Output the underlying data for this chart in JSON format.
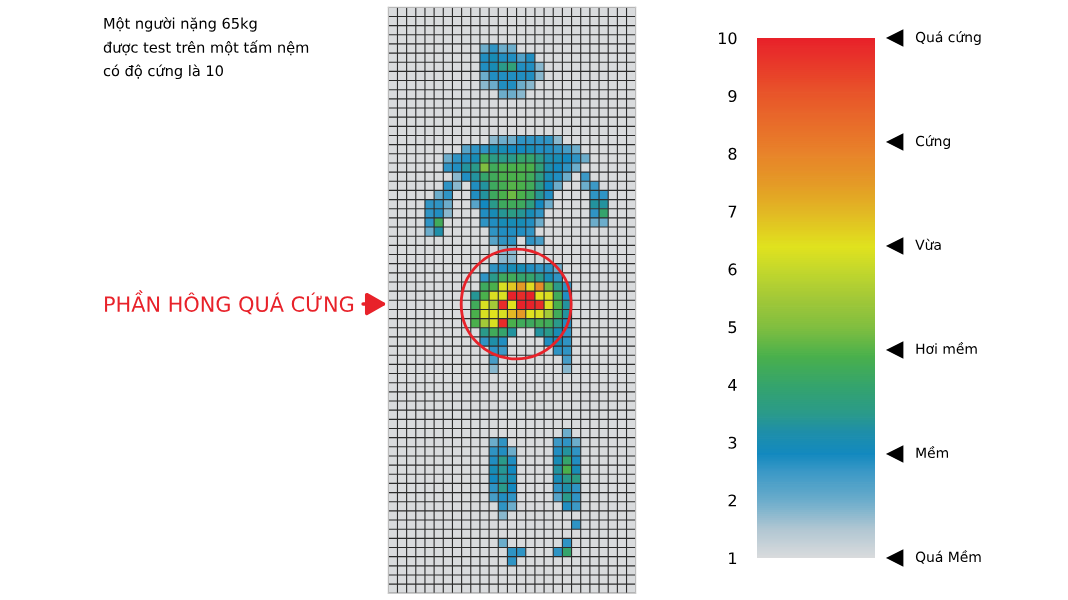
{
  "chart_data": {
    "type": "heatmap",
    "title": "Một người nặng 65kg\nđược test trên một tấm nệm\ncó độ cứng là 10",
    "categories": [
      null,
      null,
      null,
      null,
      null,
      null,
      null,
      null,
      null,
      null,
      null,
      null,
      null,
      null,
      null,
      null,
      null,
      null,
      null,
      null,
      null,
      null,
      null,
      null,
      null,
      null,
      null
    ],
    "y_categories": [
      null,
      null,
      null,
      null,
      null,
      null,
      null,
      null,
      null,
      null,
      null,
      null,
      null,
      null,
      null,
      null,
      null,
      null,
      null,
      null,
      null,
      null,
      null,
      null,
      null,
      null,
      null,
      null,
      null,
      null,
      null,
      null,
      null,
      null,
      null,
      null,
      null,
      null,
      null,
      null,
      null,
      null,
      null,
      null,
      null,
      null,
      null,
      null,
      null,
      null,
      null,
      null,
      null,
      null,
      null,
      null,
      null,
      null,
      null,
      null,
      null,
      null,
      null,
      null
    ],
    "cells": [
      [
        1,
        1,
        1,
        1,
        1,
        1,
        1,
        1,
        1,
        1,
        1,
        1,
        1,
        1,
        1,
        1,
        1,
        1,
        1,
        1,
        1,
        1,
        1,
        1,
        1,
        1,
        1
      ],
      [
        1,
        1,
        1,
        1,
        1,
        1,
        1,
        1,
        1,
        1,
        1,
        1,
        1,
        1,
        1,
        1,
        1,
        1,
        1,
        1,
        1,
        1,
        1,
        1,
        1,
        1,
        1
      ],
      [
        1,
        1,
        1,
        1,
        1,
        1,
        1,
        1,
        1,
        1,
        1,
        1,
        1,
        1,
        1,
        1,
        1,
        1,
        1,
        1,
        1,
        1,
        1,
        1,
        1,
        1,
        1
      ],
      [
        1,
        1,
        1,
        1,
        1,
        1,
        1,
        1,
        1,
        1,
        1,
        1,
        1,
        1,
        1,
        1,
        1,
        1,
        1,
        1,
        1,
        1,
        1,
        1,
        1,
        1,
        1
      ],
      [
        1,
        1,
        1,
        1,
        1,
        1,
        1,
        1,
        1,
        1,
        2,
        2.6,
        2,
        2,
        1,
        1,
        1,
        1,
        1,
        1,
        1,
        1,
        1,
        1,
        1,
        1,
        1
      ],
      [
        1,
        1,
        1,
        1,
        1,
        1,
        1,
        1,
        1,
        1,
        2.7,
        3,
        2.7,
        2.7,
        2.3,
        2.7,
        1,
        1,
        1,
        1,
        1,
        1,
        1,
        1,
        1,
        1,
        1
      ],
      [
        1,
        1,
        1,
        1,
        1,
        1,
        1,
        1,
        1,
        1,
        2.7,
        3,
        3.5,
        3.8,
        2.7,
        2.7,
        1.8,
        1,
        1,
        1,
        1,
        1,
        1,
        1,
        1,
        1,
        1
      ],
      [
        1,
        1,
        1,
        1,
        1,
        1,
        1,
        1,
        1,
        1,
        2,
        2.7,
        2.7,
        2.7,
        2.7,
        2.7,
        1.8,
        1,
        1,
        1,
        1,
        1,
        1,
        1,
        1,
        1,
        1
      ],
      [
        1,
        1,
        1,
        1,
        1,
        1,
        1,
        1,
        1,
        1,
        1.8,
        2,
        2.7,
        2.7,
        2,
        1.8,
        1,
        1,
        1,
        1,
        1,
        1,
        1,
        1,
        1,
        1,
        1
      ],
      [
        1,
        1,
        1,
        1,
        1,
        1,
        1,
        1,
        1,
        1,
        1,
        1,
        2,
        2,
        1.8,
        1,
        1,
        1,
        1,
        1,
        1,
        1,
        1,
        1,
        1,
        1,
        1
      ],
      [
        1,
        1,
        1,
        1,
        1,
        1,
        1,
        1,
        1,
        1,
        1,
        1,
        1,
        1,
        1,
        1,
        1,
        1,
        1,
        1,
        1,
        1,
        1,
        1,
        1,
        1,
        1
      ],
      [
        1,
        1,
        1,
        1,
        1,
        1,
        1,
        1,
        1,
        1,
        1,
        1,
        1,
        1,
        1,
        1,
        1,
        1,
        1,
        1,
        1,
        1,
        1,
        1,
        1,
        1,
        1
      ],
      [
        1,
        1,
        1,
        1,
        1,
        1,
        1,
        1,
        1,
        1,
        1,
        1,
        1,
        1,
        1,
        1,
        1,
        1,
        1,
        1,
        1,
        1,
        1,
        1,
        1,
        1,
        1
      ],
      [
        1,
        1,
        1,
        1,
        1,
        1,
        1,
        1,
        1,
        1,
        1,
        1,
        1,
        1,
        1,
        1,
        1,
        1,
        1,
        1,
        1,
        1,
        1,
        1,
        1,
        1,
        1
      ],
      [
        1,
        1,
        1,
        1,
        1,
        1,
        1,
        1,
        1,
        1,
        1,
        1.8,
        2,
        2,
        2.6,
        2.6,
        2.6,
        2.6,
        1.8,
        1,
        1,
        1,
        1,
        1,
        1,
        1,
        1
      ],
      [
        1,
        1,
        1,
        1,
        1,
        1,
        1,
        1,
        2.2,
        2.6,
        2.6,
        3,
        3,
        2.8,
        2.8,
        3,
        2.7,
        2.7,
        2.6,
        2.4,
        2,
        1,
        1,
        1,
        1,
        1,
        1
      ],
      [
        1,
        1,
        1,
        1,
        1,
        1,
        2,
        2.6,
        2.7,
        3,
        4.2,
        3.6,
        3.5,
        3.5,
        4,
        4,
        3.5,
        3.1,
        3,
        2.8,
        2.6,
        2,
        1,
        1,
        1,
        1,
        1
      ],
      [
        1,
        1,
        1,
        1,
        1,
        1,
        2.6,
        2.7,
        3.3,
        3.5,
        5,
        4.3,
        4.5,
        4.5,
        4.5,
        4.5,
        3.8,
        3.1,
        2.8,
        2.6,
        2,
        1,
        1,
        1,
        1,
        1,
        1
      ],
      [
        1,
        1,
        1,
        1,
        1,
        1,
        1,
        1.8,
        2.7,
        3.3,
        4,
        4.3,
        4.5,
        4.5,
        4.5,
        4.3,
        3.6,
        3,
        2.7,
        2,
        1,
        2.5,
        1,
        1,
        1,
        1,
        1
      ],
      [
        1,
        1,
        1,
        1,
        1,
        1,
        2.6,
        1.8,
        1,
        2.7,
        3.3,
        4.2,
        4.4,
        4.6,
        4.5,
        4.3,
        3.5,
        2.8,
        2,
        1,
        1,
        2,
        2.5,
        1,
        1,
        1,
        1
      ],
      [
        1,
        1,
        1,
        1,
        1,
        2,
        2.6,
        1,
        1,
        2.7,
        3.3,
        4.2,
        4.5,
        4.8,
        4.5,
        4.2,
        3.4,
        2.7,
        1,
        1,
        1,
        1,
        2.6,
        2.6,
        1,
        1,
        1
      ],
      [
        1,
        1,
        1,
        1,
        2.6,
        2.6,
        2,
        1,
        1,
        2.2,
        2.8,
        3.5,
        4.2,
        4.3,
        4.2,
        3.7,
        2.8,
        2,
        1,
        1,
        1,
        1,
        3.3,
        3.3,
        1,
        1,
        1
      ],
      [
        1,
        1,
        1,
        1,
        2.6,
        2.7,
        1.8,
        1,
        1,
        1,
        2.7,
        3,
        3.4,
        3.6,
        3.4,
        3,
        2.6,
        1,
        1,
        1,
        1,
        1,
        2.6,
        4,
        1,
        1,
        1
      ],
      [
        1,
        1,
        1,
        1,
        2.6,
        4.3,
        1,
        1,
        1,
        1,
        2.6,
        2.7,
        3,
        3,
        3,
        2.7,
        2,
        1,
        1,
        1,
        1,
        1,
        2,
        2,
        1,
        1,
        1
      ],
      [
        1,
        1,
        1,
        1,
        2,
        3.2,
        1,
        1,
        1,
        1,
        1,
        2.6,
        2.7,
        2.7,
        2.7,
        2.6,
        1,
        1,
        1,
        1,
        1,
        1,
        1,
        1,
        1,
        1,
        1
      ],
      [
        1,
        1,
        1,
        1,
        1,
        1,
        1,
        1,
        1,
        1,
        1,
        2.2,
        2.6,
        2.6,
        1,
        2.6,
        2.4,
        1,
        1,
        1,
        1,
        1,
        1,
        1,
        1,
        1,
        1
      ],
      [
        1,
        1,
        1,
        1,
        1,
        1,
        1,
        1,
        1,
        1,
        1,
        1,
        1.8,
        1.8,
        1,
        1,
        1,
        1,
        1,
        1,
        1,
        1,
        1,
        1,
        1,
        1,
        1
      ],
      [
        1,
        1,
        1,
        1,
        1,
        1,
        1,
        1,
        1,
        1,
        1,
        1,
        1.8,
        1.8,
        1,
        1,
        1,
        1,
        1,
        1,
        1,
        1,
        1,
        1,
        1,
        1,
        1
      ],
      [
        1,
        1,
        1,
        1,
        1,
        1,
        1,
        1,
        1,
        1,
        1,
        2.6,
        2.7,
        3,
        3,
        2.7,
        2.6,
        2.6,
        2,
        1,
        1,
        1,
        1,
        1,
        1,
        1,
        1
      ],
      [
        1,
        1,
        1,
        1,
        1,
        1,
        1,
        1,
        1,
        1,
        2.6,
        3.5,
        4.2,
        4.3,
        4,
        4,
        3.5,
        3,
        2.6,
        1,
        1,
        1,
        1,
        1,
        1,
        1,
        1
      ],
      [
        1,
        1,
        1,
        1,
        1,
        1,
        1,
        1,
        1,
        1,
        4.2,
        4.5,
        6.3,
        6.8,
        7.5,
        6.5,
        7.8,
        4.8,
        3.5,
        2.6,
        1,
        1,
        1,
        1,
        1,
        1,
        1
      ],
      [
        1,
        1,
        1,
        1,
        1,
        1,
        1,
        1,
        1,
        3.4,
        4.5,
        6.3,
        6.3,
        10,
        9.8,
        10,
        6.4,
        6.3,
        4.3,
        2.7,
        1,
        1,
        1,
        1,
        1,
        1,
        1
      ],
      [
        1,
        1,
        1,
        1,
        1,
        1,
        1,
        1,
        1,
        4.3,
        6.3,
        5.5,
        9.8,
        6.4,
        10,
        10,
        9.8,
        6.3,
        4.5,
        3.3,
        1,
        1,
        1,
        1,
        1,
        1,
        1
      ],
      [
        1,
        1,
        1,
        1,
        1,
        1,
        1,
        1,
        1,
        4.5,
        6.3,
        6.4,
        6.3,
        7,
        7.5,
        6.4,
        6.3,
        5.5,
        4.3,
        3.3,
        1,
        1,
        1,
        1,
        1,
        1,
        1
      ],
      [
        1,
        1,
        1,
        1,
        1,
        1,
        1,
        1,
        1,
        4.5,
        5.5,
        6.3,
        9.8,
        4.5,
        4.3,
        4.2,
        4.4,
        4.3,
        3.5,
        2.7,
        1,
        1,
        1,
        1,
        1,
        1,
        1
      ],
      [
        1,
        1,
        1,
        1,
        1,
        1,
        1,
        1,
        1,
        1,
        3.5,
        4.3,
        4,
        3.3,
        1,
        1,
        3.3,
        3.5,
        3,
        2.6,
        1,
        1,
        1,
        1,
        1,
        1,
        1
      ],
      [
        1,
        1,
        1,
        1,
        1,
        1,
        1,
        1,
        1,
        1,
        2.6,
        3.2,
        2.7,
        1,
        1,
        1,
        1,
        2.7,
        3,
        2.6,
        1,
        1,
        1,
        1,
        1,
        1,
        1
      ],
      [
        1,
        1,
        1,
        1,
        1,
        1,
        1,
        1,
        1,
        1,
        1,
        2.6,
        2.5,
        1,
        1,
        1,
        1,
        1,
        2.6,
        2.6,
        1,
        1,
        1,
        1,
        1,
        1,
        1
      ],
      [
        1,
        1,
        1,
        1,
        1,
        1,
        1,
        1,
        1,
        1,
        1,
        2.4,
        1,
        1,
        1,
        1,
        1,
        1,
        1,
        2.4,
        1,
        1,
        1,
        1,
        1,
        1,
        1
      ],
      [
        1,
        1,
        1,
        1,
        1,
        1,
        1,
        1,
        1,
        1,
        1,
        1.8,
        1,
        1,
        1,
        1,
        1,
        1,
        1,
        1.8,
        1,
        1,
        1,
        1,
        1,
        1,
        1
      ],
      [
        1,
        1,
        1,
        1,
        1,
        1,
        1,
        1,
        1,
        1,
        1,
        1,
        1,
        1,
        1,
        1,
        1,
        1,
        1,
        1,
        1,
        1,
        1,
        1,
        1,
        1,
        1
      ],
      [
        1,
        1,
        1,
        1,
        1,
        1,
        1,
        1,
        1,
        1,
        1,
        1,
        1,
        1,
        1,
        1,
        1,
        1,
        1,
        1,
        1,
        1,
        1,
        1,
        1,
        1,
        1
      ],
      [
        1,
        1,
        1,
        1,
        1,
        1,
        1,
        1,
        1,
        1,
        1,
        1,
        1,
        1,
        1,
        1,
        1,
        1,
        1,
        1,
        1,
        1,
        1,
        1,
        1,
        1,
        1
      ],
      [
        1,
        1,
        1,
        1,
        1,
        1,
        1,
        1,
        1,
        1,
        1,
        1,
        1,
        1,
        1,
        1,
        1,
        1,
        1,
        1,
        1,
        1,
        1,
        1,
        1,
        1,
        1
      ],
      [
        1,
        1,
        1,
        1,
        1,
        1,
        1,
        1,
        1,
        1,
        1,
        1,
        1,
        1,
        1,
        1,
        1,
        1,
        1,
        1,
        1,
        1,
        1,
        1,
        1,
        1,
        1
      ],
      [
        1,
        1,
        1,
        1,
        1,
        1,
        1,
        1,
        1,
        1,
        1,
        1,
        1,
        1,
        1,
        1,
        1,
        1,
        1,
        1,
        1,
        1,
        1,
        1,
        1,
        1,
        1
      ],
      [
        1,
        1,
        1,
        1,
        1,
        1,
        1,
        1,
        1,
        1,
        1,
        1,
        1,
        1,
        1,
        1,
        1,
        1,
        1,
        2,
        1,
        1,
        1,
        1,
        1,
        1,
        1
      ],
      [
        1,
        1,
        1,
        1,
        1,
        1,
        1,
        1,
        1,
        1,
        1,
        2,
        2.6,
        1,
        1,
        1,
        1,
        1,
        2.5,
        2.6,
        2,
        1,
        1,
        1,
        1,
        1,
        1
      ],
      [
        1,
        1,
        1,
        1,
        1,
        1,
        1,
        1,
        1,
        1,
        1,
        2.6,
        2.7,
        2,
        1,
        1,
        1,
        1,
        2.7,
        3.3,
        2.6,
        1,
        1,
        1,
        1,
        1,
        1
      ],
      [
        1,
        1,
        1,
        1,
        1,
        1,
        1,
        1,
        1,
        1,
        1,
        2.7,
        3.5,
        2.7,
        1,
        1,
        1,
        1,
        3,
        4,
        2.7,
        1,
        1,
        1,
        1,
        1,
        1
      ],
      [
        1,
        1,
        1,
        1,
        1,
        1,
        1,
        1,
        1,
        1,
        1,
        3,
        3.4,
        2.8,
        1,
        1,
        1,
        1,
        3.3,
        4.5,
        3,
        1,
        1,
        1,
        1,
        1,
        1
      ],
      [
        1,
        1,
        1,
        1,
        1,
        1,
        1,
        1,
        1,
        1,
        1,
        2.8,
        3.3,
        3,
        1,
        1,
        1,
        1,
        3,
        3.5,
        3.6,
        1,
        1,
        1,
        1,
        1,
        1
      ],
      [
        1,
        1,
        1,
        1,
        1,
        1,
        1,
        1,
        1,
        1,
        1,
        2.6,
        3.5,
        2.8,
        1,
        1,
        1,
        1,
        2.6,
        3.2,
        2.6,
        1,
        1,
        1,
        1,
        1,
        1
      ],
      [
        1,
        1,
        1,
        1,
        1,
        1,
        1,
        1,
        1,
        1,
        1,
        2.4,
        2.7,
        2.6,
        1,
        1,
        1,
        1,
        2.2,
        3.5,
        2.6,
        1,
        1,
        1,
        1,
        1,
        1
      ],
      [
        1,
        1,
        1,
        1,
        1,
        1,
        1,
        1,
        1,
        1,
        1,
        1,
        2.6,
        2,
        1,
        1,
        1,
        1,
        1,
        2.7,
        2.5,
        1,
        1,
        1,
        1,
        1,
        1
      ],
      [
        1,
        1,
        1,
        1,
        1,
        1,
        1,
        1,
        1,
        1,
        1,
        1,
        1.8,
        1,
        1,
        1,
        1,
        1,
        1,
        1,
        1,
        1,
        1,
        1,
        1,
        1,
        1
      ],
      [
        1,
        1,
        1,
        1,
        1,
        1,
        1,
        1,
        1,
        1,
        1,
        1,
        1,
        1,
        1,
        1,
        1,
        1,
        1,
        1,
        2.6,
        1,
        1,
        1,
        1,
        1,
        1
      ],
      [
        1,
        1,
        1,
        1,
        1,
        1,
        1,
        1,
        1,
        1,
        1,
        1,
        1,
        1,
        1,
        1,
        1,
        1,
        1,
        1,
        1,
        1,
        1,
        1,
        1,
        1,
        1
      ],
      [
        1,
        1,
        1,
        1,
        1,
        1,
        1,
        1,
        1,
        1,
        1,
        1,
        2,
        1,
        1,
        1,
        1,
        1,
        1,
        2.6,
        1,
        1,
        1,
        1,
        1,
        1,
        1
      ],
      [
        1,
        1,
        1,
        1,
        1,
        1,
        1,
        1,
        1,
        1,
        1,
        1,
        1,
        2.6,
        2.6,
        1,
        1,
        1,
        2.6,
        4,
        1,
        1,
        1,
        1,
        1,
        1,
        1
      ],
      [
        1,
        1,
        1,
        1,
        1,
        1,
        1,
        1,
        1,
        1,
        1,
        1,
        1,
        2.6,
        1,
        1,
        1,
        1,
        1,
        1,
        1,
        1,
        1,
        1,
        1,
        1,
        1
      ],
      [
        1,
        1,
        1,
        1,
        1,
        1,
        1,
        1,
        1,
        1,
        1,
        1,
        1,
        1,
        1,
        1,
        1,
        1,
        1,
        1,
        1,
        1,
        1,
        1,
        1,
        1,
        1
      ],
      [
        1,
        1,
        1,
        1,
        1,
        1,
        1,
        1,
        1,
        1,
        1,
        1,
        1,
        1,
        1,
        1,
        1,
        1,
        1,
        1,
        1,
        1,
        1,
        1,
        1,
        1,
        1
      ],
      [
        1,
        1,
        1,
        1,
        1,
        1,
        1,
        1,
        1,
        1,
        1,
        1,
        1,
        1,
        1,
        1,
        1,
        1,
        1,
        1,
        1,
        1,
        1,
        1,
        1,
        1,
        1
      ]
    ],
    "clim": [
      1,
      10
    ],
    "cticks": [
      1,
      2,
      3,
      4,
      5,
      6,
      7,
      8,
      9,
      10
    ],
    "grid": true,
    "annotations": [
      "PHẦN HÔNG QUÁ CỨNG",
      "Quá cứng",
      "Cứng",
      "Vừa",
      "Hơi mềm",
      "Mềm",
      "Quá Mềm"
    ]
  }
}
